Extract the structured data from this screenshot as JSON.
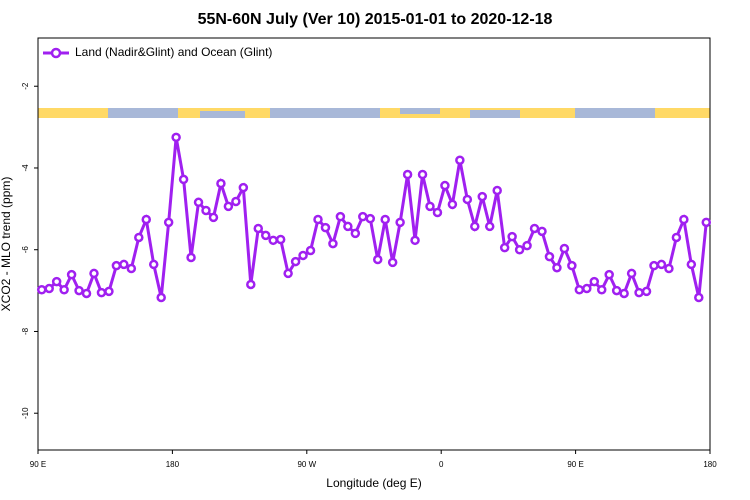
{
  "chart_data": {
    "type": "line",
    "title": "55N-60N July (Ver 10)   2015-01-01 to 2020-12-18",
    "xlabel": "Longitude (deg E)",
    "ylabel": "XCO2 - MLO trend (ppm)",
    "x": [
      92.5,
      97.5,
      102.5,
      107.5,
      112.5,
      117.5,
      122.5,
      127.5,
      132.5,
      137.5,
      142.5,
      147.5,
      152.5,
      157.5,
      162.5,
      167.5,
      172.5,
      177.5,
      182.5,
      187.5,
      192.5,
      197.5,
      202.5,
      207.5,
      212.5,
      217.5,
      222.5,
      227.5,
      232.5,
      237.5,
      242.5,
      247.5,
      252.5,
      257.5,
      262.5,
      267.5,
      272.5,
      277.5,
      282.5,
      287.5,
      292.5,
      297.5,
      302.5,
      307.5,
      312.5,
      317.5,
      322.5,
      327.5,
      332.5,
      337.5,
      342.5,
      347.5,
      352.5,
      357.5,
      362.5,
      367.5,
      372.5,
      377.5,
      382.5,
      387.5,
      392.5,
      397.5,
      402.5,
      407.5,
      412.5,
      417.5,
      422.5,
      427.5,
      432.5,
      437.5,
      442.5,
      447.5,
      452.5,
      457.5,
      462.5,
      467.5,
      472.5,
      477.5,
      482.5,
      487.5,
      492.5,
      497.5,
      502.5,
      507.5,
      512.5,
      517.5,
      522.5,
      527.5,
      532.5,
      537.5
    ],
    "series": [
      {
        "name": "Land (Nadir&Glint) and Ocean (Glint)",
        "color": "#a020f0",
        "values": [
          -6.98,
          -6.95,
          -6.78,
          -6.98,
          -6.61,
          -7.0,
          -7.07,
          -6.58,
          -7.05,
          -7.02,
          -6.39,
          -6.36,
          -6.46,
          -5.7,
          -5.26,
          -6.36,
          -7.17,
          -5.33,
          -3.25,
          -4.28,
          -6.19,
          -4.84,
          -5.04,
          -5.21,
          -4.38,
          -4.94,
          -4.82,
          -4.48,
          -6.85,
          -5.48,
          -5.65,
          -5.77,
          -5.75,
          -6.58,
          -6.29,
          -6.14,
          -6.02,
          -5.26,
          -5.46,
          -5.85,
          -5.19,
          -5.43,
          -5.6,
          -5.19,
          -5.24,
          -6.24,
          -5.26,
          -6.31,
          -5.33,
          -4.16,
          -5.77,
          -4.16,
          -4.94,
          -5.09,
          -4.43,
          -4.89,
          -3.81,
          -4.77,
          -5.43,
          -4.7,
          -5.43,
          -4.55,
          -5.95,
          -5.68,
          -6.0,
          -5.9,
          -5.48,
          -5.55,
          -6.17,
          -6.44,
          -5.97,
          -6.39,
          -6.98,
          -6.95,
          -6.78,
          -6.98,
          -6.61,
          -7.0,
          -7.07,
          -6.58,
          -7.05,
          -7.02,
          -6.39,
          -6.36,
          -6.46,
          -5.7,
          -5.26,
          -6.36,
          -7.17,
          -5.33
        ]
      }
    ],
    "xlim": [
      90,
      540
    ],
    "xticks": [
      {
        "value": 90,
        "label": "90 E"
      },
      180,
      {
        "value": 270,
        "label": "90 W"
      },
      {
        "value": 360,
        "label": "0"
      },
      {
        "value": 450,
        "label": "90 E"
      },
      {
        "value": 540,
        "label": "180"
      }
    ],
    "ylim": [
      -10.9,
      -0.82
    ],
    "yticks": [
      -10,
      -8,
      -6,
      -4,
      -2
    ],
    "legend": "top-left"
  }
}
